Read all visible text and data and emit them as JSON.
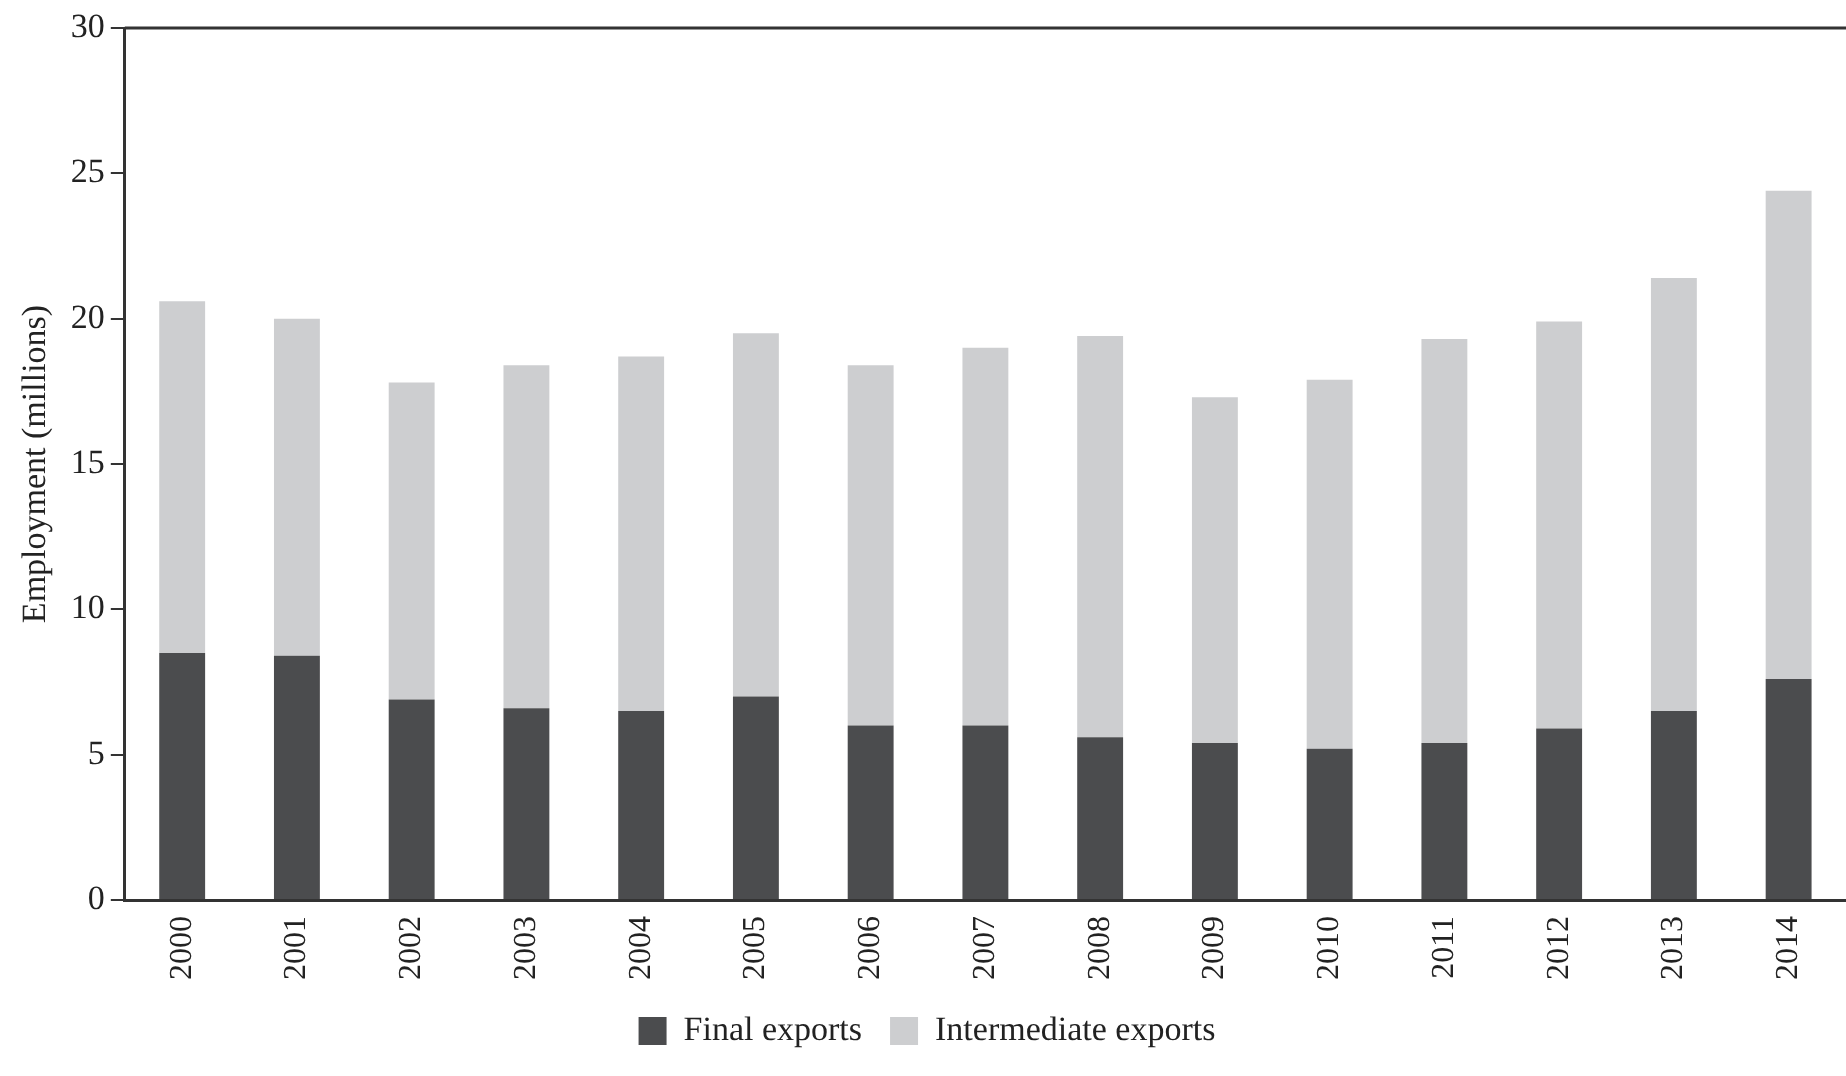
{
  "chart_data": {
    "type": "bar",
    "ylabel": "Employment (millions)",
    "stacked": true,
    "categories": [
      "2000",
      "2001",
      "2002",
      "2003",
      "2004",
      "2005",
      "2006",
      "2007",
      "2008",
      "2009",
      "2010",
      "2011",
      "2012",
      "2013",
      "2014"
    ],
    "series": [
      {
        "name": "Final exports",
        "color": "#4b4c4e",
        "values": [
          8.5,
          8.4,
          6.9,
          6.6,
          6.5,
          7.0,
          6.0,
          6.0,
          5.6,
          5.4,
          5.2,
          5.4,
          5.9,
          6.5,
          7.6
        ]
      },
      {
        "name": "Intermediate exports",
        "color": "#cdced0",
        "values": [
          12.1,
          11.6,
          10.9,
          11.8,
          12.2,
          12.5,
          12.4,
          13.0,
          13.8,
          11.9,
          12.7,
          13.9,
          14.0,
          14.9,
          16.8
        ]
      }
    ],
    "ylim": [
      0,
      30
    ],
    "yticks": [
      0,
      5,
      10,
      15,
      20,
      25,
      30
    ],
    "grid": false,
    "legend": "bottom"
  }
}
